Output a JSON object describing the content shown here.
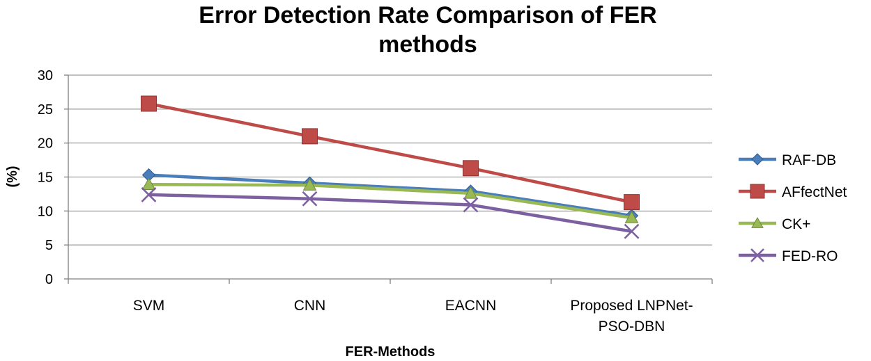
{
  "chart_data": {
    "type": "line",
    "title": "Error Detection Rate Comparison of FER methods",
    "title_lines": [
      "Error Detection Rate Comparison of FER",
      "methods"
    ],
    "xlabel": "FER-Methods",
    "ylabel": "(%)",
    "ylim": [
      0,
      30
    ],
    "yticks": [
      0,
      5,
      10,
      15,
      20,
      25,
      30
    ],
    "grid": true,
    "legend_position": "right",
    "categories": [
      "SVM",
      "CNN",
      "EACNN",
      "Proposed LNPNet-PSO-DBN"
    ],
    "category_lines": [
      [
        "SVM"
      ],
      [
        "CNN"
      ],
      [
        "EACNN"
      ],
      [
        "Proposed LNPNet-",
        "PSO-DBN"
      ]
    ],
    "series": [
      {
        "name": "RAF-DB",
        "values": [
          15.3,
          14.1,
          12.9,
          9.3
        ],
        "color": "#4a7ebb",
        "marker": "diamond"
      },
      {
        "name": "AFfectNet",
        "values": [
          25.8,
          21.0,
          16.3,
          11.3
        ],
        "color": "#be4b48",
        "marker": "square"
      },
      {
        "name": "CK+",
        "values": [
          13.9,
          13.8,
          12.6,
          9.0
        ],
        "color": "#98b954",
        "marker": "triangle"
      },
      {
        "name": "FED-RO",
        "values": [
          12.4,
          11.8,
          10.9,
          7.0
        ],
        "color": "#7d60a0",
        "marker": "x"
      }
    ]
  }
}
